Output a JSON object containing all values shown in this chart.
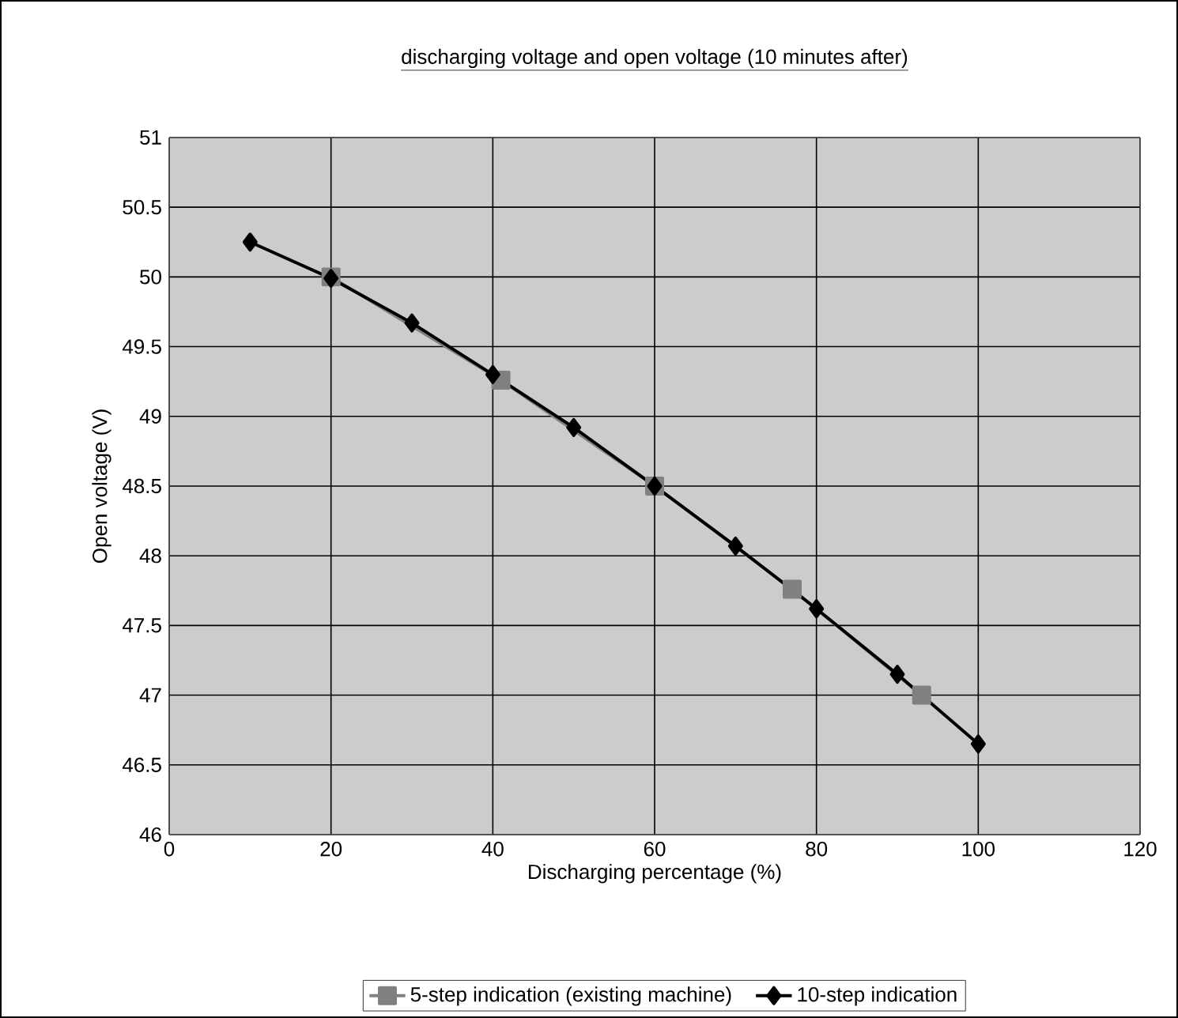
{
  "chart_data": {
    "type": "line",
    "title": "discharging voltage and open voltage (10 minutes after)",
    "xlabel": "Discharging percentage (%)",
    "ylabel": "Open voltage (V)",
    "xlim": [
      0,
      120
    ],
    "xticks": [
      0,
      20,
      40,
      60,
      80,
      100,
      120
    ],
    "ylim": [
      46,
      51
    ],
    "yticks": [
      46,
      46.5,
      47,
      47.5,
      48,
      48.5,
      49,
      49.5,
      50,
      50.5,
      51
    ],
    "grid": true,
    "legend": "bottom",
    "series": [
      {
        "name": "5-step indication (existing machine)",
        "color": "#808080",
        "marker": "square",
        "x": [
          20,
          41,
          60,
          77,
          93
        ],
        "values": [
          50.0,
          49.26,
          48.5,
          47.76,
          47.0
        ]
      },
      {
        "name": "10-step indication",
        "color": "#000000",
        "marker": "diamond",
        "x": [
          10,
          20,
          30,
          40,
          50,
          60,
          70,
          80,
          90,
          100
        ],
        "values": [
          50.25,
          49.99,
          49.67,
          49.3,
          48.92,
          48.5,
          48.07,
          47.62,
          47.15,
          46.65
        ]
      }
    ]
  }
}
